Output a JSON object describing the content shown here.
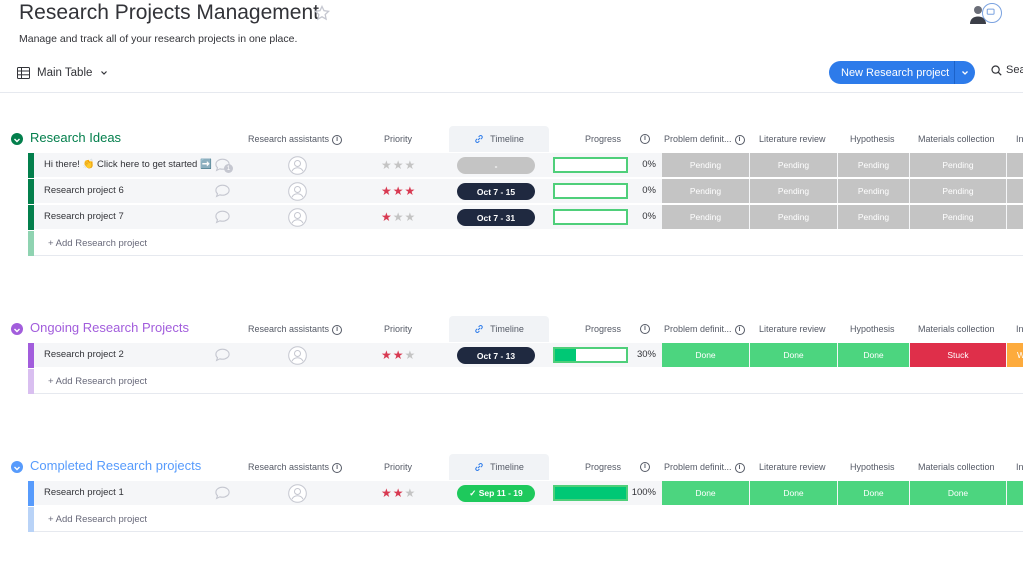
{
  "header": {
    "title": "Research Projects Management",
    "subtitle": "Manage and track all of your research projects in one place.",
    "view_label": "Main Table",
    "new_button_label": "New Research project",
    "search_label": "Sea"
  },
  "columns": {
    "assistants": "Research assistants",
    "priority": "Priority",
    "timeline": "Timeline",
    "progress": "Progress",
    "problem": "Problem definit...",
    "literature": "Literature review",
    "hypothesis": "Hypothesis",
    "materials": "Materials collection",
    "next": "In"
  },
  "colors": {
    "accent": "#2d7bea",
    "done": "#4cd57f",
    "pending": "#c4c4c4",
    "stuck": "#df2f4a",
    "working": "#fdab3d",
    "star": "#d83a52"
  },
  "groups": [
    {
      "title": "Research Ideas",
      "color": "#037f4c",
      "light": "#8fd3b1",
      "add_label": "+ Add Research project",
      "rows": [
        {
          "name": "Hi there! 👏 Click here to get started ➡️",
          "priority": 0,
          "timeline": "-",
          "timeline_color": "#c4c4c4",
          "progress": "0%",
          "progress_value": 0,
          "statuses": [
            "Pending",
            "Pending",
            "Pending",
            "Pending"
          ],
          "status_colors": [
            "#c4c4c4",
            "#c4c4c4",
            "#c4c4c4",
            "#c4c4c4"
          ],
          "next_color": "#c4c4c4",
          "next_label": "",
          "chat_badge": "1"
        },
        {
          "name": "Research project 6",
          "priority": 3,
          "timeline": "Oct 7 - 15",
          "timeline_color": "#1f2940",
          "progress": "0%",
          "progress_value": 0,
          "statuses": [
            "Pending",
            "Pending",
            "Pending",
            "Pending"
          ],
          "status_colors": [
            "#c4c4c4",
            "#c4c4c4",
            "#c4c4c4",
            "#c4c4c4"
          ],
          "next_color": "#c4c4c4",
          "next_label": ""
        },
        {
          "name": "Research project 7",
          "priority": 1,
          "timeline": "Oct 7 - 31",
          "timeline_color": "#1f2940",
          "progress": "0%",
          "progress_value": 0,
          "statuses": [
            "Pending",
            "Pending",
            "Pending",
            "Pending"
          ],
          "status_colors": [
            "#c4c4c4",
            "#c4c4c4",
            "#c4c4c4",
            "#c4c4c4"
          ],
          "next_color": "#c4c4c4",
          "next_label": ""
        }
      ]
    },
    {
      "title": "Ongoing Research Projects",
      "color": "#a25ddc",
      "light": "#d9bff0",
      "add_label": "+ Add Research project",
      "rows": [
        {
          "name": "Research project 2",
          "priority": 2,
          "timeline": "Oct 7 - 13",
          "timeline_color": "#1f2940",
          "progress": "30%",
          "progress_value": 30,
          "statuses": [
            "Done",
            "Done",
            "Done",
            "Stuck"
          ],
          "status_colors": [
            "#4cd57f",
            "#4cd57f",
            "#4cd57f",
            "#df2f4a"
          ],
          "next_color": "#fdab3d",
          "next_label": "W"
        }
      ]
    },
    {
      "title": "Completed Research projects",
      "color": "#579bfc",
      "light": "#b9d3f7",
      "add_label": "+ Add Research project",
      "rows": [
        {
          "name": "Research project 1",
          "priority": 2,
          "timeline": "✓ Sep 11 - 19",
          "timeline_color": "#1ec95c",
          "progress": "100%",
          "progress_value": 100,
          "statuses": [
            "Done",
            "Done",
            "Done",
            "Done"
          ],
          "status_colors": [
            "#4cd57f",
            "#4cd57f",
            "#4cd57f",
            "#4cd57f"
          ],
          "next_color": "#4cd57f",
          "next_label": ""
        }
      ]
    }
  ]
}
